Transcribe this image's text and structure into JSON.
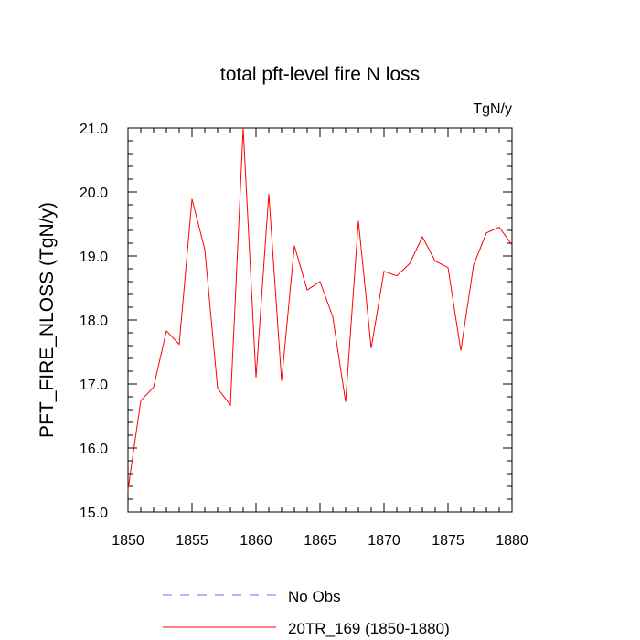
{
  "chart_data": {
    "type": "line",
    "title": "total pft-level fire N loss",
    "units_label": "TgN/y",
    "ylabel": "PFT_FIRE_NLOSS  (TgN/y)",
    "xlabel": "",
    "xlim": [
      1850,
      1880
    ],
    "ylim": [
      15.0,
      21.0
    ],
    "x_ticks": [
      1850,
      1855,
      1860,
      1865,
      1870,
      1875,
      1880
    ],
    "x_tick_labels": [
      "1850",
      "1855",
      "1860",
      "1865",
      "1870",
      "1875",
      "1880"
    ],
    "y_ticks": [
      15.0,
      16.0,
      17.0,
      18.0,
      19.0,
      20.0,
      21.0
    ],
    "y_tick_labels": [
      "15.0",
      "16.0",
      "17.0",
      "18.0",
      "19.0",
      "20.0",
      "21.0"
    ],
    "series": [
      {
        "name": "20TR_169 (1850-1880)",
        "color": "#ff0000",
        "x": [
          1850,
          1851,
          1852,
          1853,
          1854,
          1855,
          1856,
          1857,
          1858,
          1859,
          1860,
          1861,
          1862,
          1863,
          1864,
          1865,
          1866,
          1867,
          1868,
          1869,
          1870,
          1871,
          1872,
          1873,
          1874,
          1875,
          1876,
          1877,
          1878,
          1879,
          1880
        ],
        "values": [
          15.35,
          16.74,
          16.95,
          17.83,
          17.62,
          19.89,
          19.1,
          16.93,
          16.67,
          21.0,
          17.1,
          19.97,
          17.05,
          19.16,
          18.47,
          18.6,
          18.05,
          16.72,
          19.55,
          17.56,
          18.76,
          18.69,
          18.88,
          19.3,
          18.92,
          18.82,
          17.52,
          18.86,
          19.36,
          19.45,
          19.17
        ]
      }
    ],
    "legend": [
      {
        "label": "No Obs",
        "color": "#6a6aff",
        "style": "dashed"
      },
      {
        "label": "20TR_169 (1850-1880)",
        "color": "#ff0000",
        "style": "solid"
      }
    ],
    "legend_position": "bottom"
  }
}
